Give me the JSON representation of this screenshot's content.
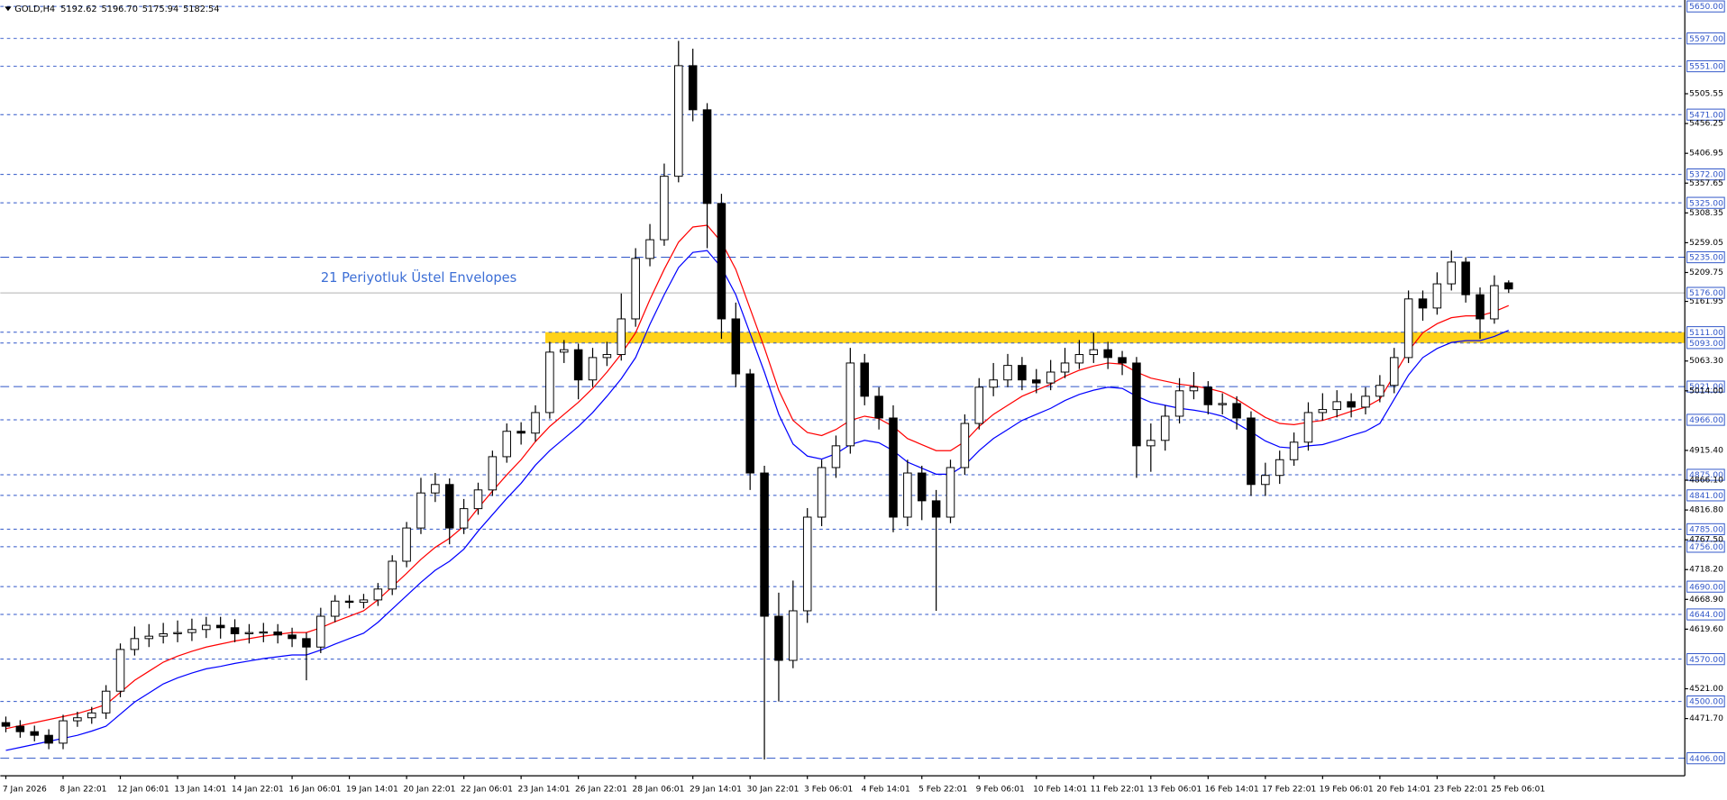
{
  "chart_data": {
    "type": "candlestick",
    "header": {
      "symbol": "GOLD,H4",
      "open": "5192.62",
      "high": "5196.70",
      "low": "5175.94",
      "close": "5182.54"
    },
    "annotation": "21 Periyotluk Üstel Envelopes",
    "categories": [
      "7 Jan 2026",
      null,
      null,
      null,
      "8 Jan 22:01",
      null,
      null,
      null,
      "12 Jan 06:01",
      null,
      null,
      null,
      "13 Jan 14:01",
      null,
      null,
      null,
      "14 Jan 22:01",
      null,
      null,
      null,
      "16 Jan 06:01",
      null,
      null,
      null,
      "19 Jan 14:01",
      null,
      null,
      null,
      "20 Jan 22:01",
      null,
      null,
      null,
      "22 Jan 06:01",
      null,
      null,
      null,
      "23 Jan 14:01",
      null,
      null,
      null,
      "26 Jan 22:01",
      null,
      null,
      null,
      "28 Jan 06:01",
      null,
      null,
      null,
      "29 Jan 14:01",
      null,
      null,
      null,
      "30 Jan 22:01",
      null,
      null,
      null,
      "3 Feb 06:01",
      null,
      null,
      null,
      "4 Feb 14:01",
      null,
      null,
      null,
      "5 Feb 22:01",
      null,
      null,
      null,
      "9 Feb 06:01",
      null,
      null,
      null,
      "10 Feb 14:01",
      null,
      null,
      null,
      "11 Feb 22:01",
      null,
      null,
      null,
      "13 Feb 06:01",
      null,
      null,
      null,
      "16 Feb 14:01",
      null,
      null,
      null,
      "17 Feb 22:01",
      null,
      null,
      null,
      "19 Feb 06:01",
      null,
      null,
      null,
      "20 Feb 14:01",
      null,
      null,
      null,
      "23 Feb 22:01",
      null,
      null,
      null,
      "25 Feb 06:01",
      null
    ],
    "open": [
      4465,
      4459,
      4450,
      4444,
      4431,
      4468,
      4473,
      4481,
      4517,
      4586,
      4604,
      4608,
      4612,
      4614,
      4619,
      4626,
      4622,
      4612,
      4614,
      4615,
      4610,
      4604,
      4590,
      4641,
      4666,
      4664,
      4668,
      4686,
      4732,
      4787,
      4845,
      4859,
      4787,
      4819,
      4850,
      4905,
      4947,
      4944,
      4978,
      5078,
      5082,
      5032,
      5069,
      5074,
      5133,
      5233,
      5264,
      5369,
      5552,
      5479,
      5324,
      5133,
      5042,
      4878,
      4641,
      4568,
      4650,
      4805,
      4887,
      4923,
      5060,
      5005,
      4969,
      4805,
      4878,
      4832,
      4805,
      4887,
      4960,
      5020,
      5032,
      5056,
      5032,
      5027,
      5045,
      5060,
      5074,
      5082,
      5069,
      5060,
      4923,
      4932,
      4972,
      5014,
      5020,
      4991,
      4993,
      4969,
      4859,
      4874,
      4900,
      4929,
      4978,
      4983,
      4996,
      4987,
      5005,
      5023,
      5069,
      5166,
      5151,
      5191,
      5227,
      5173,
      5133,
      5192.62
    ],
    "high": [
      4475,
      4469,
      4460,
      4454,
      4478,
      4483,
      4491,
      4527,
      4596,
      4624,
      4628,
      4630,
      4634,
      4637,
      4640,
      4640,
      4636,
      4628,
      4630,
      4628,
      4622,
      4614,
      4655,
      4676,
      4676,
      4678,
      4696,
      4742,
      4797,
      4870,
      4878,
      4869,
      4835,
      4862,
      4915,
      4960,
      4962,
      4990,
      5095,
      5098,
      5092,
      5085,
      5095,
      5175,
      5250,
      5290,
      5390,
      5593,
      5580,
      5490,
      5340,
      5160,
      5050,
      4890,
      4680,
      4700,
      4820,
      4900,
      4940,
      5085,
      5075,
      5020,
      4990,
      4900,
      4890,
      4850,
      4900,
      4975,
      5035,
      5060,
      5075,
      5070,
      5050,
      5065,
      5085,
      5098,
      5110,
      5095,
      5080,
      5070,
      4960,
      4990,
      5035,
      5045,
      5030,
      5010,
      5005,
      4980,
      4895,
      4915,
      4945,
      4995,
      5010,
      5015,
      5010,
      5020,
      5040,
      5085,
      5180,
      5180,
      5210,
      5246,
      5235,
      5185,
      5205,
      5196.7
    ],
    "low": [
      4449,
      4440,
      4434,
      4421,
      4421,
      4458,
      4463,
      4471,
      4507,
      4576,
      4590,
      4596,
      4598,
      4600,
      4605,
      4604,
      4598,
      4596,
      4598,
      4596,
      4590,
      4535,
      4580,
      4631,
      4654,
      4654,
      4658,
      4676,
      4722,
      4777,
      4830,
      4760,
      4777,
      4809,
      4840,
      4895,
      4925,
      4930,
      4968,
      5060,
      5000,
      5020,
      5055,
      5064,
      5120,
      5220,
      5254,
      5359,
      5460,
      5250,
      5100,
      5020,
      4850,
      4404,
      4500,
      4555,
      4630,
      4790,
      4870,
      4910,
      4990,
      4950,
      4780,
      4790,
      4800,
      4650,
      4795,
      4875,
      4950,
      5005,
      5020,
      5015,
      5010,
      5015,
      5035,
      5050,
      5060,
      5050,
      5040,
      4870,
      4880,
      4915,
      4960,
      5000,
      4975,
      4975,
      4950,
      4840,
      4840,
      4860,
      4890,
      4915,
      4965,
      4970,
      4970,
      4975,
      4995,
      5010,
      5060,
      5130,
      5140,
      5180,
      5160,
      5100,
      5125,
      5175.94
    ],
    "close": [
      4459,
      4450,
      4444,
      4431,
      4468,
      4473,
      4481,
      4517,
      4586,
      4604,
      4608,
      4612,
      4614,
      4619,
      4626,
      4622,
      4612,
      4614,
      4615,
      4610,
      4604,
      4590,
      4641,
      4666,
      4664,
      4668,
      4686,
      4732,
      4787,
      4845,
      4859,
      4787,
      4819,
      4850,
      4905,
      4947,
      4944,
      4978,
      5078,
      5082,
      5032,
      5069,
      5074,
      5133,
      5233,
      5264,
      5369,
      5552,
      5479,
      5324,
      5133,
      5042,
      4878,
      4641,
      4568,
      4650,
      4805,
      4887,
      4923,
      5060,
      5005,
      4969,
      4805,
      4878,
      4832,
      4805,
      4887,
      4960,
      5020,
      5032,
      5056,
      5032,
      5027,
      5045,
      5060,
      5074,
      5082,
      5069,
      5060,
      4923,
      4932,
      4972,
      5014,
      5020,
      4991,
      4993,
      4969,
      4859,
      4874,
      4900,
      4929,
      4978,
      4983,
      4996,
      4987,
      5005,
      5023,
      5069,
      5166,
      5151,
      5191,
      5227,
      5173,
      5133,
      5188,
      5182.54
    ],
    "up_color": "#ffffff",
    "down_color": "#000000",
    "series": [
      {
        "color": "#ff0000",
        "values": [
          4455,
          4460,
          4465,
          4470,
          4475,
          4480,
          4487,
          4495,
          4515,
          4535,
          4550,
          4565,
          4575,
          4583,
          4590,
          4595,
          4600,
          4604,
          4608,
          4611,
          4614,
          4614,
          4622,
          4632,
          4641,
          4650,
          4668,
          4690,
          4712,
          4735,
          4755,
          4770,
          4790,
          4820,
          4848,
          4875,
          4900,
          4930,
          4955,
          4975,
          4995,
          5018,
          5045,
          5075,
          5110,
          5165,
          5215,
          5260,
          5285,
          5288,
          5260,
          5215,
          5150,
          5085,
          5015,
          4965,
          4945,
          4940,
          4950,
          4965,
          4972,
          4968,
          4955,
          4935,
          4925,
          4915,
          4915,
          4930,
          4955,
          4975,
          4990,
          5005,
          5015,
          5025,
          5038,
          5048,
          5055,
          5060,
          5058,
          5045,
          5035,
          5030,
          5025,
          5022,
          5018,
          5012,
          5000,
          4985,
          4970,
          4960,
          4958,
          4962,
          4965,
          4972,
          4980,
          4987,
          5000,
          5040,
          5080,
          5110,
          5125,
          5135,
          5138,
          5138,
          5145,
          5155
        ]
      },
      {
        "color": "#0000ff",
        "values": [
          4419,
          4424,
          4429,
          4434,
          4439,
          4444,
          4451,
          4459,
          4479,
          4499,
          4514,
          4529,
          4539,
          4547,
          4554,
          4558,
          4563,
          4567,
          4571,
          4574,
          4577,
          4577,
          4585,
          4595,
          4604,
          4613,
          4631,
          4653,
          4675,
          4697,
          4717,
          4732,
          4752,
          4782,
          4809,
          4836,
          4861,
          4891,
          4915,
          4935,
          4955,
          4978,
          5005,
          5034,
          5069,
          5124,
          5173,
          5218,
          5243,
          5246,
          5218,
          5173,
          5109,
          5045,
          4975,
          4926,
          4906,
          4901,
          4910,
          4925,
          4932,
          4928,
          4915,
          4896,
          4886,
          4876,
          4876,
          4891,
          4915,
          4935,
          4950,
          4965,
          4975,
          4985,
          4998,
          5008,
          5015,
          5020,
          5018,
          5005,
          4995,
          4990,
          4985,
          4982,
          4978,
          4972,
          4960,
          4946,
          4931,
          4921,
          4919,
          4923,
          4925,
          4932,
          4940,
          4947,
          4960,
          5000,
          5040,
          5069,
          5084,
          5094,
          5097,
          5097,
          5104,
          5114
        ]
      }
    ],
    "ylim": [
      4377,
      5657
    ],
    "yticks": [
      {
        "value": 5505.55,
        "label": "5505.55"
      },
      {
        "value": 5456.25,
        "label": "5456.25"
      },
      {
        "value": 5406.95,
        "label": "5406.95"
      },
      {
        "value": 5357.65,
        "label": "5357.65"
      },
      {
        "value": 5308.35,
        "label": "5308.35"
      },
      {
        "value": 5259.05,
        "label": "5259.05"
      },
      {
        "value": 5209.75,
        "label": "5209.75"
      },
      {
        "value": 5161.95,
        "label": "5161.95"
      },
      {
        "value": 5063.3,
        "label": "5063.30"
      },
      {
        "value": 5014,
        "label": "5014.00"
      },
      {
        "value": 4915.4,
        "label": "4915.40"
      },
      {
        "value": 4866.1,
        "label": "4866.10"
      },
      {
        "value": 4816.8,
        "label": "4816.80"
      },
      {
        "value": 4767.5,
        "label": "4767.50"
      },
      {
        "value": 4718.2,
        "label": "4718.20"
      },
      {
        "value": 4668.9,
        "label": "4668.90"
      },
      {
        "value": 4619.6,
        "label": "4619.60"
      },
      {
        "value": 4521,
        "label": "4521.00"
      },
      {
        "value": 4471.7,
        "label": "4471.70"
      }
    ],
    "levels": [
      {
        "value": 5650,
        "label": "5650.00",
        "dash": "short"
      },
      {
        "value": 5597,
        "label": "5597.00",
        "dash": "short"
      },
      {
        "value": 5551,
        "label": "5551.00",
        "dash": "short"
      },
      {
        "value": 5471,
        "label": "5471.00",
        "dash": "short"
      },
      {
        "value": 5372,
        "label": "5372.00",
        "dash": "short"
      },
      {
        "value": 5325,
        "label": "5325.00",
        "dash": "short"
      },
      {
        "value": 5235,
        "label": "5235.00",
        "dash": "long"
      },
      {
        "value": 5111,
        "label": "5111.00",
        "dash": "short"
      },
      {
        "value": 5093,
        "label": "5093.00",
        "dash": "short"
      },
      {
        "value": 5021,
        "label": "5021.00",
        "dash": "long"
      },
      {
        "value": 4966,
        "label": "4966.00",
        "dash": "short"
      },
      {
        "value": 4875,
        "label": "4875.00",
        "dash": "short"
      },
      {
        "value": 4841,
        "label": "4841.00",
        "dash": "short"
      },
      {
        "value": 4785,
        "label": "4785.00",
        "dash": "short"
      },
      {
        "value": 4756,
        "label": "4756.00",
        "dash": "short"
      },
      {
        "value": 4690,
        "label": "4690.00",
        "dash": "short"
      },
      {
        "value": 4644,
        "label": "4644.00",
        "dash": "short"
      },
      {
        "value": 4570,
        "label": "4570.00",
        "dash": "short"
      },
      {
        "value": 4500,
        "label": "4500.00",
        "dash": "short"
      },
      {
        "value": 4406,
        "label": "4406.00",
        "dash": "long"
      }
    ],
    "level_color": "#2f55c8",
    "current_price": {
      "value": 5176,
      "label": "5176.00"
    },
    "zone": {
      "low": 5093,
      "high": 5111,
      "start": 38,
      "color": "#ffd21a"
    }
  }
}
